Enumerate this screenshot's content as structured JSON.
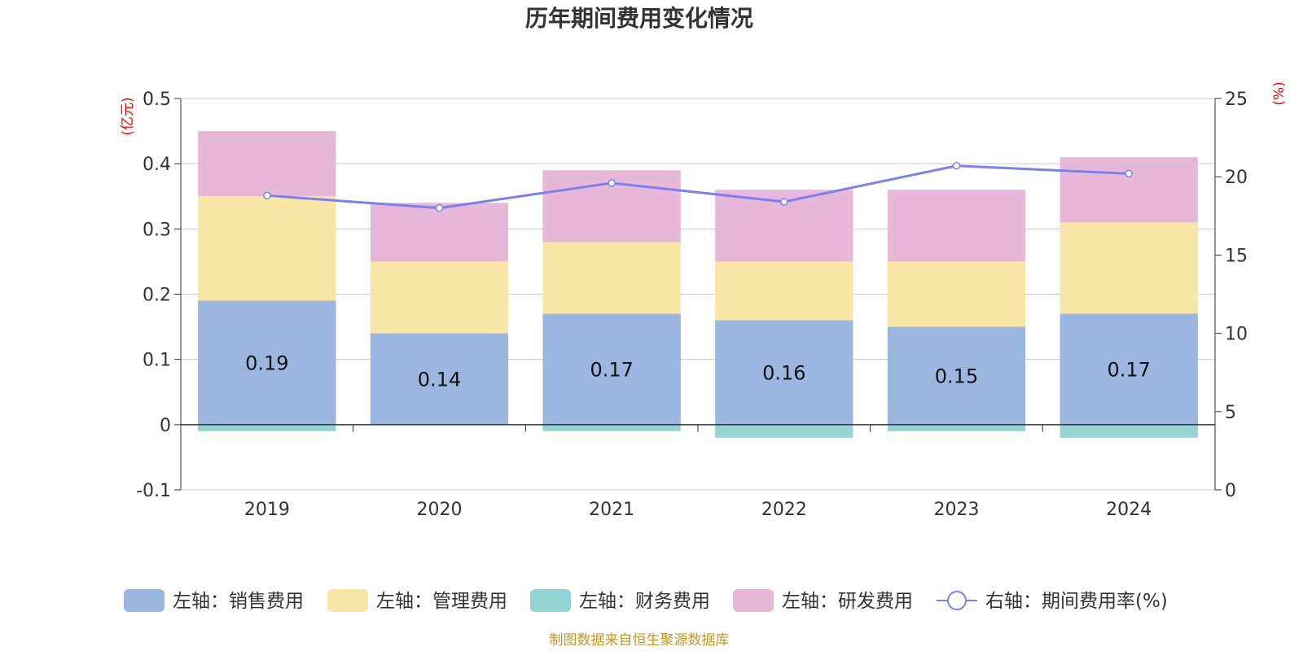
{
  "chart_data": {
    "type": "bar",
    "title": "历年期间费用变化情况",
    "categories": [
      "2019",
      "2020",
      "2021",
      "2022",
      "2023",
      "2024"
    ],
    "left_axis": {
      "unit": "(亿元)",
      "ylim": [
        -0.1,
        0.5
      ],
      "ticks": [
        "-0.1",
        "0",
        "0.1",
        "0.2",
        "0.3",
        "0.4",
        "0.5"
      ]
    },
    "right_axis": {
      "unit": "(%)",
      "ylim": [
        0,
        25
      ],
      "ticks": [
        "0",
        "5",
        "10",
        "15",
        "20",
        "25"
      ]
    },
    "series": [
      {
        "name": "左轴：销售费用",
        "type": "bar",
        "axis": "left",
        "color": "#9bb7e0",
        "values": [
          0.19,
          0.14,
          0.17,
          0.16,
          0.15,
          0.17
        ],
        "labels": [
          "0.19",
          "0.14",
          "0.17",
          "0.16",
          "0.15",
          "0.17"
        ]
      },
      {
        "name": "左轴：管理费用",
        "type": "bar",
        "axis": "left",
        "color": "#f7e6a6",
        "values": [
          0.16,
          0.11,
          0.11,
          0.09,
          0.1,
          0.14
        ]
      },
      {
        "name": "左轴：财务费用",
        "type": "bar",
        "axis": "left",
        "color": "#94d4d4",
        "values": [
          -0.01,
          0.0,
          -0.01,
          -0.02,
          -0.01,
          -0.02
        ]
      },
      {
        "name": "左轴：研发费用",
        "type": "bar",
        "axis": "left",
        "color": "#e8b8d8",
        "values": [
          0.1,
          0.09,
          0.11,
          0.11,
          0.11,
          0.1
        ]
      },
      {
        "name": "右轴：期间费用率(%)",
        "type": "line",
        "axis": "right",
        "color": "#7b7ff0",
        "values": [
          18.8,
          18.0,
          19.6,
          18.4,
          20.7,
          20.2
        ]
      }
    ],
    "grid": true,
    "legend_position": "bottom"
  },
  "source_note": "制图数据来自恒生聚源数据库"
}
